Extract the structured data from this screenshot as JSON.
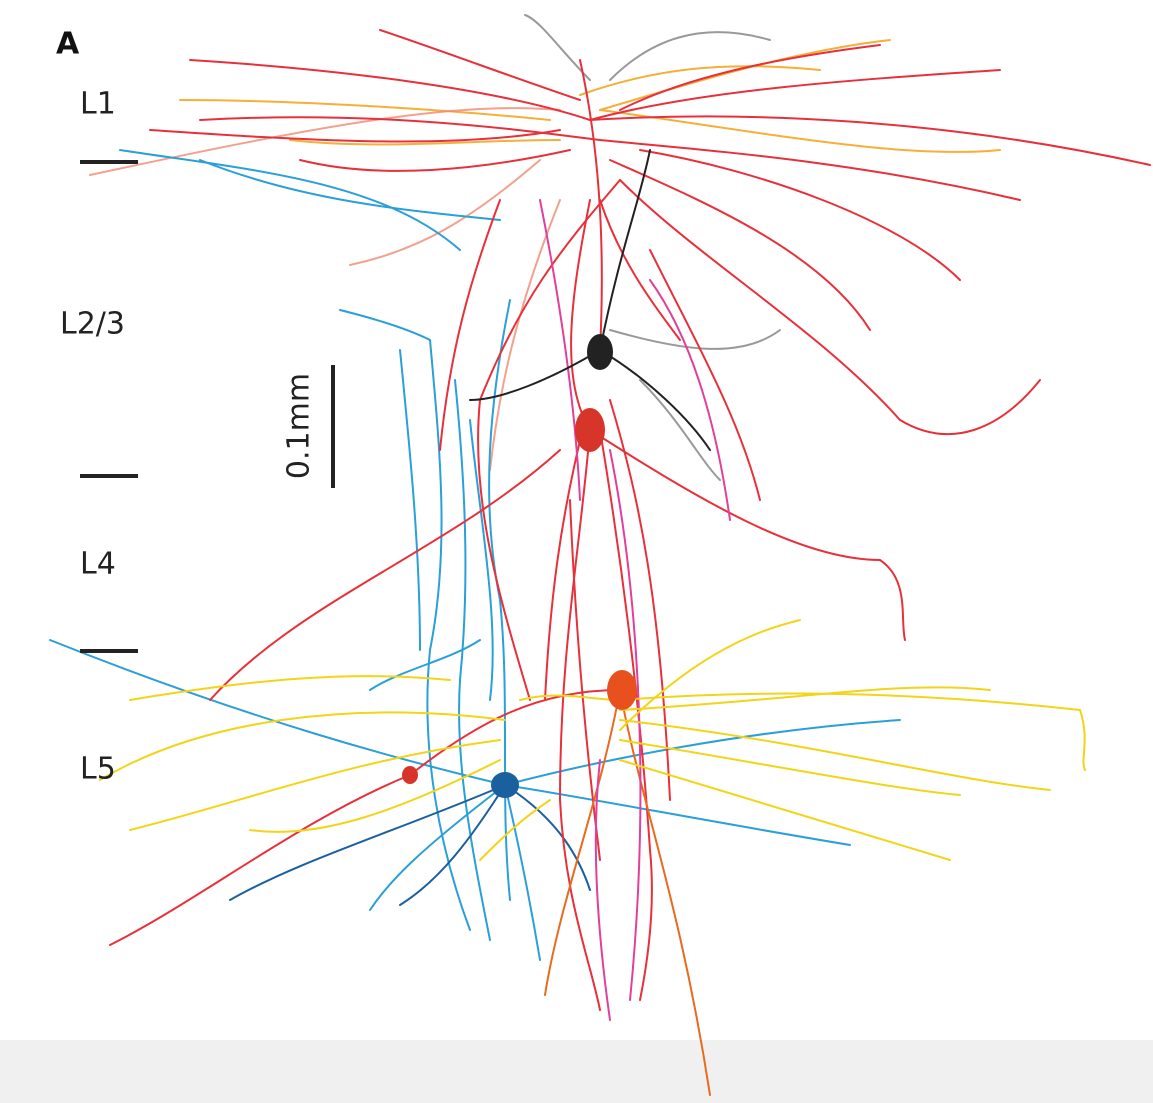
{
  "figure": {
    "panel_label": "A",
    "layers": [
      "L1",
      "L2/3",
      "L4",
      "L5"
    ],
    "scale_bar_label": "0.1mm"
  }
}
